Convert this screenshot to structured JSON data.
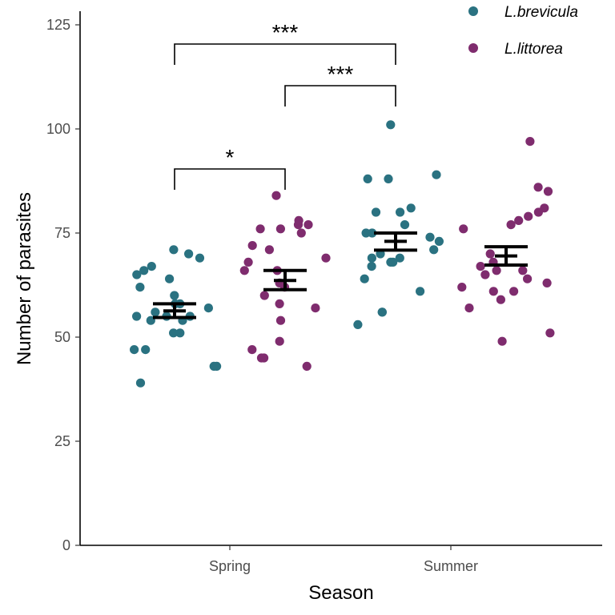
{
  "chart_data": {
    "type": "scatter",
    "title": "",
    "xlabel": "Season",
    "ylabel": "Number of parasites",
    "categories": [
      "Spring",
      "Summer"
    ],
    "ylim": [
      0,
      125
    ],
    "yticks": [
      0,
      25,
      50,
      75,
      100,
      125
    ],
    "legend_position": "top-right",
    "series": [
      {
        "name": "L.brevicula",
        "color": "#2A7281",
        "groups": [
          {
            "category": "Spring",
            "values": [
              71,
              58,
              62,
              67,
              64,
              58,
              65,
              57,
              54,
              55,
              56,
              69,
              70,
              55,
              60,
              54,
              55,
              66,
              51,
              51,
              47,
              47,
              43,
              43,
              39
            ],
            "mean": 56.3,
            "err_low": 54.7,
            "err_high": 58.0
          },
          {
            "category": "Summer",
            "values": [
              101,
              89,
              88,
              88,
              80,
              81,
              80,
              75,
              73,
              68,
              67,
              69,
              70,
              64,
              61,
              56,
              56,
              53,
              71,
              75,
              74,
              68,
              69,
              77
            ],
            "mean": 73.0,
            "err_low": 70.9,
            "err_high": 75.0
          }
        ]
      },
      {
        "name": "L.littorea",
        "color": "#7F2C6E",
        "groups": [
          {
            "category": "Spring",
            "values": [
              84,
              77,
              78,
              72,
              76,
              76,
              68,
              66,
              66,
              75,
              77,
              69,
              71,
              63,
              62,
              58,
              57,
              54,
              49,
              45,
              45,
              43,
              47,
              60
            ],
            "mean": 63.6,
            "err_low": 61.4,
            "err_high": 66.0
          },
          {
            "category": "Summer",
            "values": [
              97,
              86,
              85,
              81,
              80,
              79,
              78,
              77,
              76,
              70,
              68,
              67,
              66,
              66,
              64,
              65,
              63,
              62,
              61,
              61,
              59,
              57,
              51,
              49
            ],
            "mean": 69.5,
            "err_low": 67.3,
            "err_high": 71.7
          }
        ]
      }
    ],
    "significance": [
      {
        "label": "*",
        "from": "L.brevicula Spring",
        "to": "L.littorea Spring"
      },
      {
        "label": "***",
        "from": "L.littorea Spring",
        "to": "L.brevicula Summer"
      },
      {
        "label": "***",
        "from": "L.brevicula Spring",
        "to": "L.brevicula Summer"
      }
    ]
  }
}
